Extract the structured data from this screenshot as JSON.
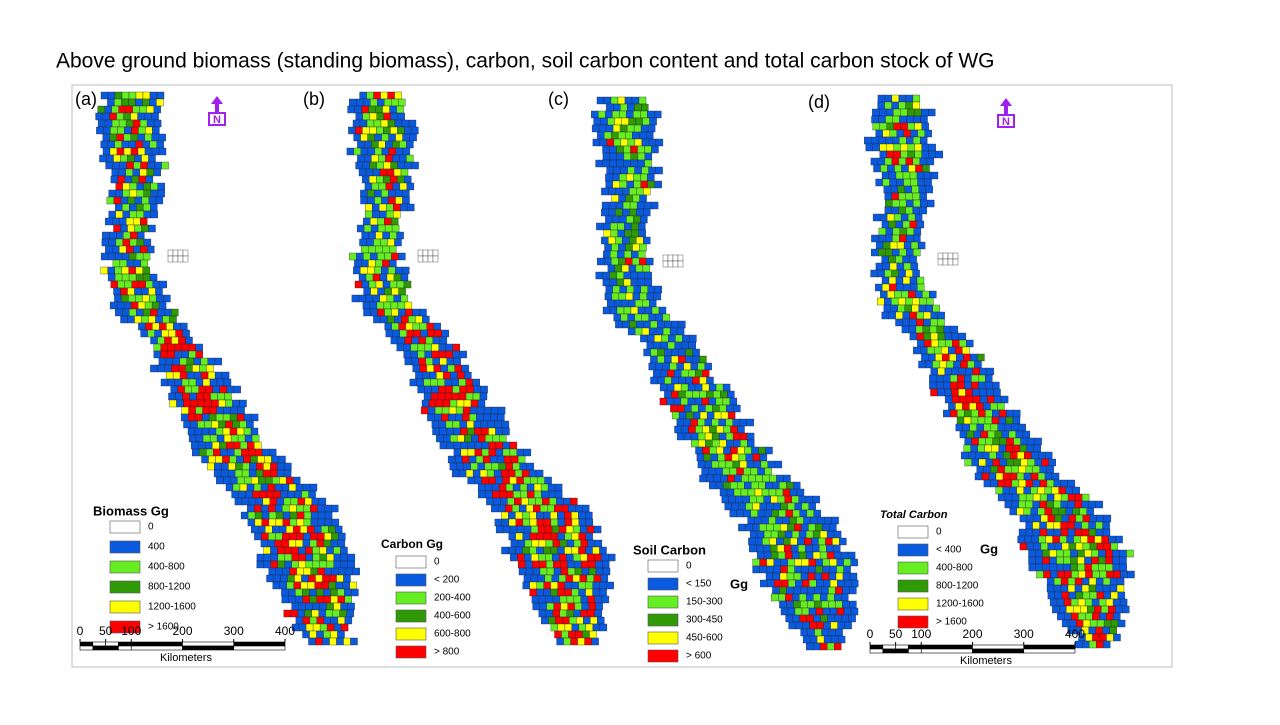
{
  "title": "Above ground biomass (standing biomass), carbon, soil carbon content and total carbon stock of WG",
  "panels": [
    {
      "label": "(a)",
      "north_arrow": "N",
      "legend": {
        "title": "Biomass Gg",
        "items": [
          "0",
          "400",
          "400-800",
          "800-1200",
          "1200-1600",
          "> 1600"
        ]
      },
      "scale_bar": {
        "ticks": [
          0,
          50,
          100,
          200,
          300,
          400
        ],
        "unit": "Kilometers"
      }
    },
    {
      "label": "(b)",
      "legend": {
        "title": "Carbon Gg",
        "items": [
          "0",
          "< 200",
          "200-400",
          "400-600",
          "600-800",
          "> 800"
        ]
      }
    },
    {
      "label": "(c)",
      "legend": {
        "title": "Soil Carbon",
        "unit": "Gg",
        "items": [
          "0",
          "< 150",
          "150-300",
          "300-450",
          "450-600",
          "> 600"
        ]
      }
    },
    {
      "label": "(d)",
      "north_arrow": "N",
      "legend": {
        "title": "Total Carbon",
        "unit": "Gg",
        "items": [
          "0",
          "< 400",
          "400-800",
          "800-1200",
          "1200-1600",
          "> 1600"
        ]
      },
      "scale_bar": {
        "ticks": [
          0,
          50,
          100,
          200,
          300,
          400
        ],
        "unit": "Kilometers"
      }
    }
  ]
}
